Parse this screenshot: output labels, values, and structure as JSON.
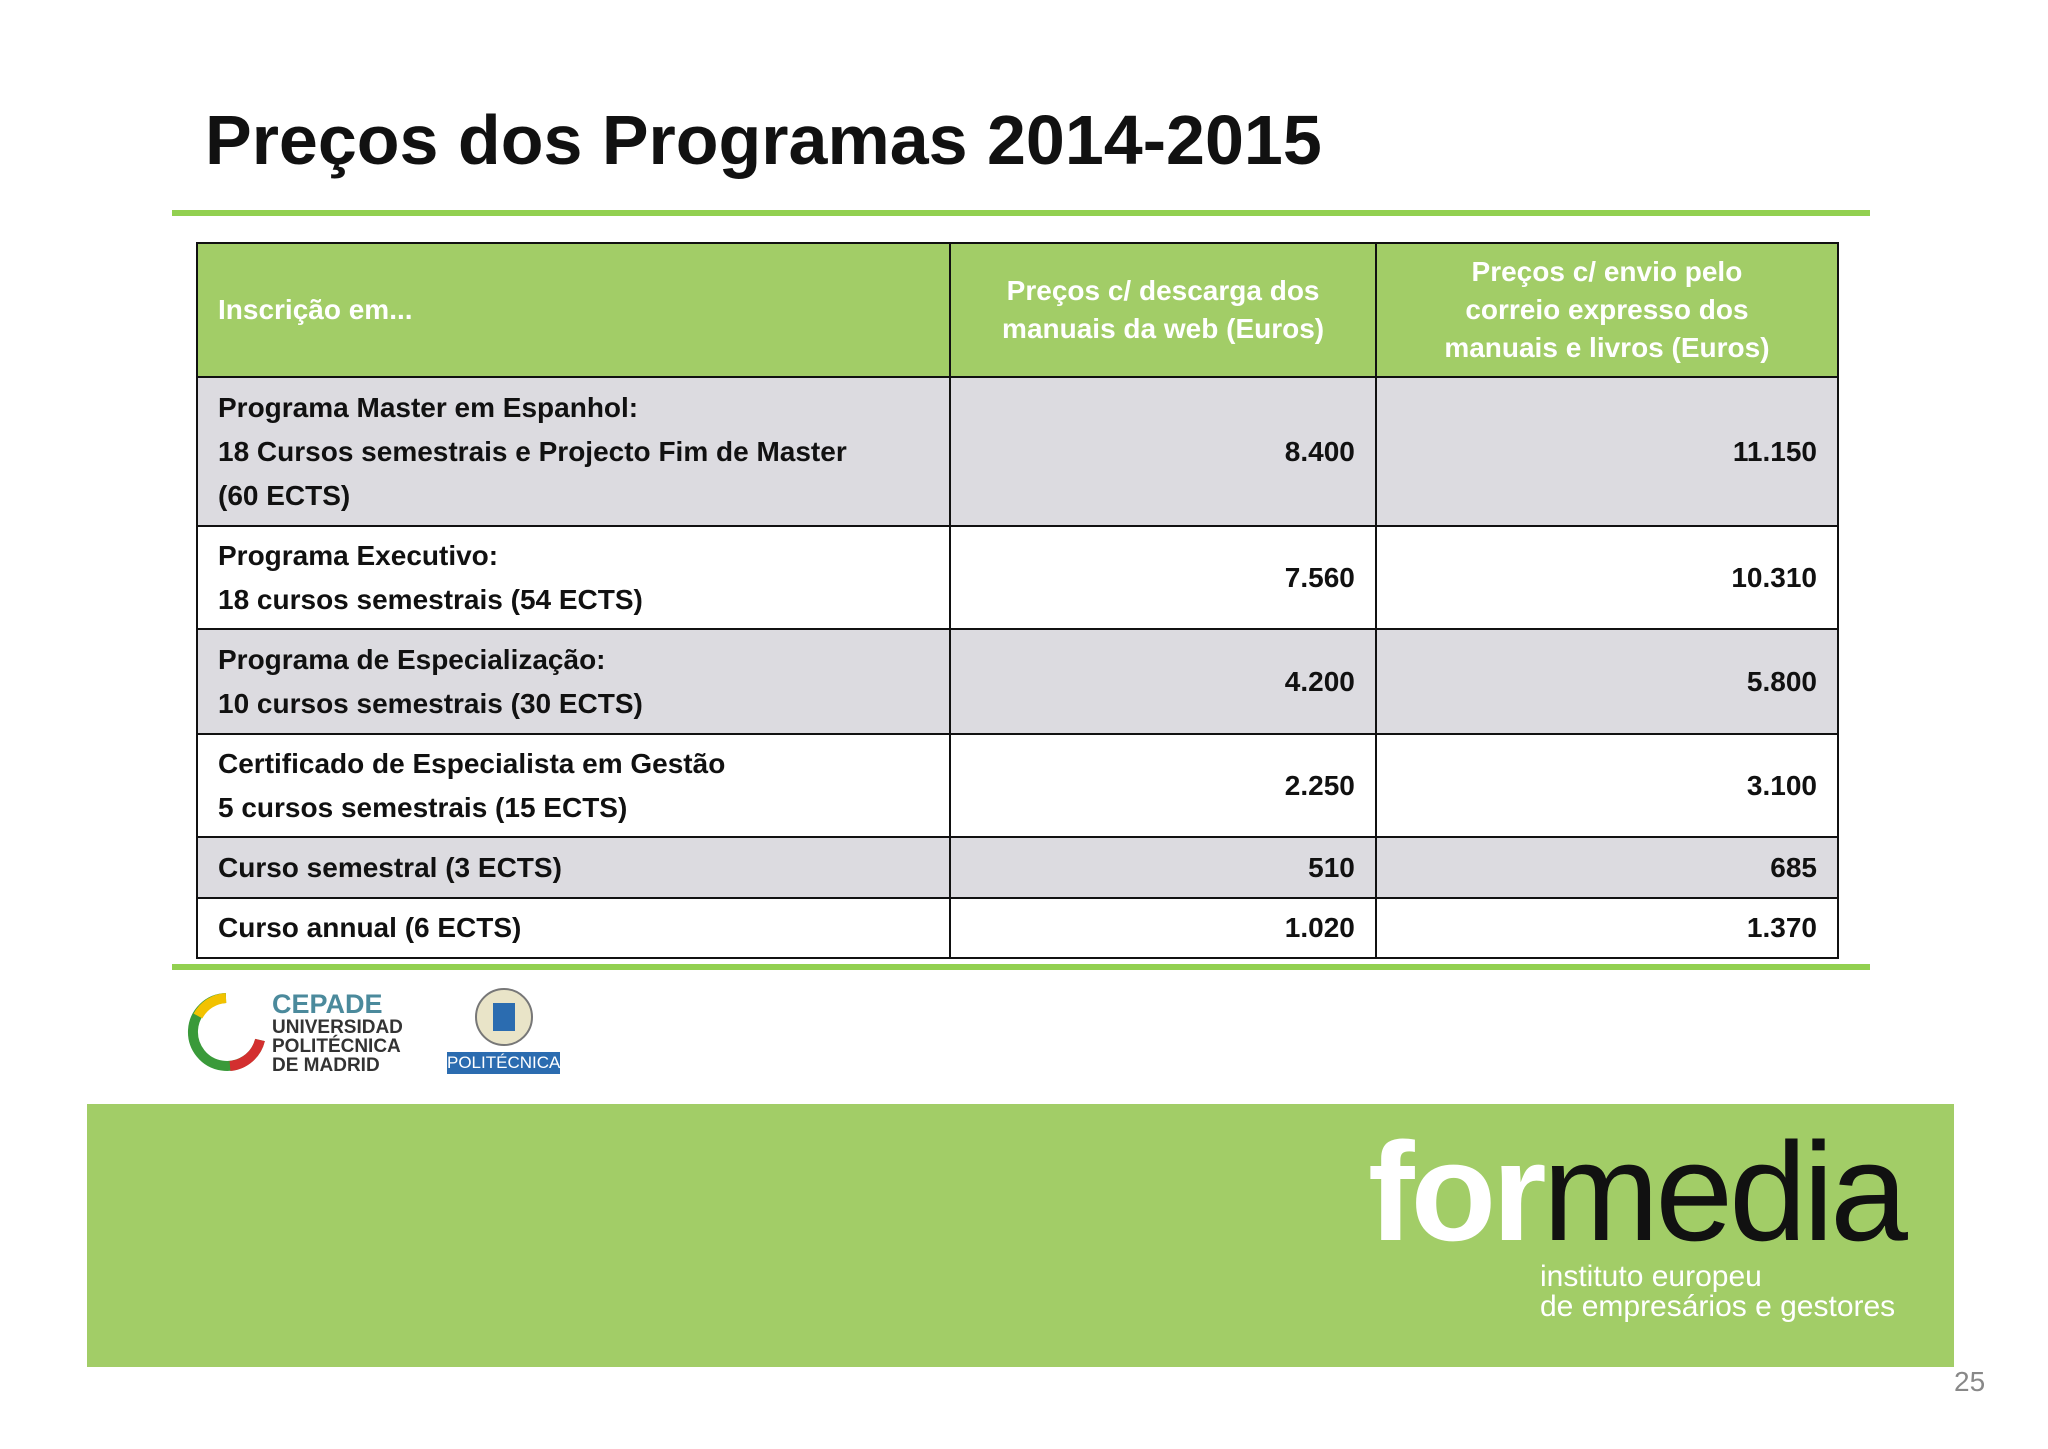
{
  "title": "Preços dos Programas 2014-2015",
  "table": {
    "header": [
      [
        "Inscrição em..."
      ],
      [
        "Preços c/ descarga dos",
        "manuais da web (Euros)"
      ],
      [
        "Preços c/ envio pelo",
        "correio  expresso dos",
        "manuais e livros (Euros)"
      ]
    ],
    "rows": [
      [
        [
          "Programa Master em Espanhol:",
          "18 Cursos semestrais e Projecto Fim de Master",
          "(60 ECTS)"
        ],
        "8.400",
        "11.150"
      ],
      [
        [
          "Programa Executivo:",
          "18 cursos semestrais (54 ECTS)"
        ],
        "7.560",
        "10.310"
      ],
      [
        [
          "Programa de Especialização:",
          "10 cursos semestrais (30 ECTS)"
        ],
        "4.200",
        "5.800"
      ],
      [
        [
          "Certificado de Especialista em Gestão",
          "5 cursos semestrais (15 ECTS)"
        ],
        "2.250",
        "3.100"
      ],
      [
        [
          "Curso semestral (3 ECTS)"
        ],
        "510",
        "685"
      ],
      [
        [
          "Curso annual (6 ECTS)"
        ],
        "1.020",
        "1.370"
      ]
    ]
  },
  "logos": {
    "cepade": [
      "CEPADE",
      "UNIVERSIDAD",
      "POLITÉCNICA",
      "DE MADRID"
    ],
    "upm": "POLITÉCNICA"
  },
  "brand": {
    "light": "for",
    "dark": "media",
    "tagline": [
      "instituto europeu",
      "de empresários e gestores"
    ]
  },
  "page_number": "25"
}
